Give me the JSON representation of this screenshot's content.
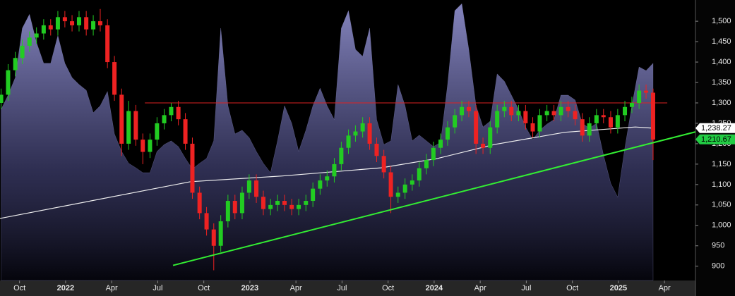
{
  "chart_data": {
    "type": "candlestick",
    "up_color": "#22cc22",
    "down_color": "#ee2222",
    "xlim": [
      2021.644,
      2025.418
    ],
    "ylim": [
      865,
      1552
    ],
    "xticks": [
      {
        "value": 2021.75,
        "label": "Oct"
      },
      2022,
      {
        "value": 2022.25,
        "label": "Apr"
      },
      {
        "value": 2022.5,
        "label": "Jul"
      },
      {
        "value": 2022.75,
        "label": "Oct"
      },
      2023,
      {
        "value": 2023.25,
        "label": "Apr"
      },
      {
        "value": 2023.5,
        "label": "Jul"
      },
      {
        "value": 2023.75,
        "label": "Oct"
      },
      2024,
      {
        "value": 2024.25,
        "label": "Apr"
      },
      {
        "value": 2024.5,
        "label": "Jul"
      },
      {
        "value": 2024.75,
        "label": "Oct"
      },
      2025,
      {
        "value": 2025.25,
        "label": "Apr"
      }
    ],
    "yticks": [
      900,
      950,
      {
        "value": 1000,
        "label": "1,000"
      },
      {
        "value": 1050,
        "label": "1,050"
      },
      {
        "value": 1100,
        "label": "1,100"
      },
      {
        "value": 1150,
        "label": "1,150"
      },
      {
        "value": 1200,
        "label": "1,200"
      },
      {
        "value": 1250,
        "label": "1,250"
      },
      {
        "value": 1300,
        "label": "1,300"
      },
      {
        "value": 1350,
        "label": "1,350"
      },
      {
        "value": 1400,
        "label": "1,400"
      },
      {
        "value": 1450,
        "label": "1,450"
      },
      {
        "value": 1500,
        "label": "1,500"
      }
    ],
    "x": [
      2021.65,
      2021.688,
      2021.727,
      2021.765,
      2021.804,
      2021.842,
      2021.881,
      2021.919,
      2021.958,
      2021.996,
      2022.035,
      2022.073,
      2022.112,
      2022.15,
      2022.188,
      2022.227,
      2022.265,
      2022.304,
      2022.342,
      2022.381,
      2022.419,
      2022.458,
      2022.496,
      2022.535,
      2022.573,
      2022.612,
      2022.65,
      2022.688,
      2022.727,
      2022.765,
      2022.804,
      2022.842,
      2022.881,
      2022.919,
      2022.958,
      2022.996,
      2023.035,
      2023.073,
      2023.112,
      2023.15,
      2023.188,
      2023.227,
      2023.265,
      2023.304,
      2023.342,
      2023.381,
      2023.419,
      2023.458,
      2023.496,
      2023.535,
      2023.573,
      2023.612,
      2023.65,
      2023.688,
      2023.727,
      2023.765,
      2023.804,
      2023.842,
      2023.881,
      2023.919,
      2023.958,
      2023.996,
      2024.035,
      2024.073,
      2024.112,
      2024.15,
      2024.188,
      2024.227,
      2024.265,
      2024.304,
      2024.342,
      2024.381,
      2024.419,
      2024.458,
      2024.496,
      2024.535,
      2024.573,
      2024.612,
      2024.65,
      2024.688,
      2024.727,
      2024.765,
      2024.804,
      2024.842,
      2024.881,
      2024.919,
      2024.958,
      2024.996,
      2025.035,
      2025.073,
      2025.112,
      2025.15,
      2025.188
    ],
    "open": [
      1300,
      1320,
      1380,
      1410,
      1440,
      1460,
      1470,
      1490,
      1480,
      1510,
      1500,
      1490,
      1510,
      1480,
      1500,
      1490,
      1400,
      1320,
      1200,
      1280,
      1210,
      1180,
      1210,
      1250,
      1270,
      1290,
      1260,
      1200,
      1080,
      1030,
      990,
      950,
      1010,
      1060,
      1030,
      1080,
      1110,
      1070,
      1040,
      1050,
      1060,
      1050,
      1040,
      1050,
      1060,
      1090,
      1110,
      1120,
      1150,
      1190,
      1220,
      1230,
      1250,
      1200,
      1170,
      1130,
      1070,
      1080,
      1100,
      1110,
      1140,
      1160,
      1190,
      1210,
      1240,
      1270,
      1290,
      1280,
      1200,
      1190,
      1240,
      1280,
      1290,
      1270,
      1280,
      1250,
      1230,
      1270,
      1280,
      1270,
      1290,
      1280,
      1260,
      1220,
      1250,
      1270,
      1265,
      1240,
      1270,
      1290,
      1300,
      1330,
      1325
    ],
    "high": [
      1335,
      1395,
      1425,
      1455,
      1475,
      1485,
      1505,
      1505,
      1525,
      1525,
      1515,
      1525,
      1525,
      1515,
      1530,
      1505,
      1415,
      1335,
      1305,
      1295,
      1225,
      1225,
      1265,
      1285,
      1300,
      1305,
      1275,
      1215,
      1095,
      1045,
      1005,
      1025,
      1075,
      1075,
      1095,
      1125,
      1125,
      1085,
      1065,
      1075,
      1075,
      1065,
      1065,
      1075,
      1105,
      1125,
      1135,
      1165,
      1205,
      1235,
      1245,
      1265,
      1265,
      1215,
      1185,
      1145,
      1095,
      1115,
      1125,
      1155,
      1175,
      1205,
      1225,
      1255,
      1285,
      1305,
      1305,
      1295,
      1215,
      1255,
      1295,
      1305,
      1305,
      1295,
      1295,
      1265,
      1285,
      1295,
      1295,
      1305,
      1305,
      1295,
      1275,
      1265,
      1285,
      1285,
      1280,
      1285,
      1305,
      1315,
      1345,
      1345,
      1335
    ],
    "low": [
      1285,
      1305,
      1365,
      1395,
      1425,
      1445,
      1455,
      1465,
      1465,
      1485,
      1475,
      1475,
      1465,
      1465,
      1475,
      1385,
      1305,
      1170,
      1185,
      1195,
      1150,
      1165,
      1195,
      1235,
      1255,
      1245,
      1185,
      1065,
      1015,
      975,
      890,
      935,
      995,
      1015,
      1015,
      1065,
      1055,
      1025,
      1025,
      1035,
      1035,
      1025,
      1025,
      1035,
      1045,
      1075,
      1095,
      1105,
      1135,
      1175,
      1205,
      1215,
      1185,
      1155,
      1115,
      1030,
      1055,
      1065,
      1085,
      1095,
      1125,
      1145,
      1175,
      1195,
      1225,
      1255,
      1265,
      1175,
      1175,
      1175,
      1225,
      1265,
      1255,
      1255,
      1235,
      1215,
      1215,
      1255,
      1255,
      1255,
      1265,
      1245,
      1205,
      1205,
      1235,
      1250,
      1225,
      1225,
      1255,
      1275,
      1285,
      1310,
      1160
    ],
    "close": [
      1320,
      1380,
      1410,
      1440,
      1460,
      1470,
      1490,
      1480,
      1510,
      1500,
      1490,
      1510,
      1480,
      1500,
      1490,
      1400,
      1320,
      1200,
      1280,
      1210,
      1180,
      1210,
      1250,
      1270,
      1290,
      1260,
      1200,
      1080,
      1030,
      990,
      950,
      1010,
      1060,
      1030,
      1080,
      1110,
      1070,
      1040,
      1050,
      1060,
      1050,
      1040,
      1050,
      1060,
      1090,
      1110,
      1120,
      1150,
      1190,
      1220,
      1230,
      1250,
      1200,
      1170,
      1130,
      1070,
      1080,
      1100,
      1110,
      1140,
      1160,
      1190,
      1210,
      1240,
      1270,
      1290,
      1280,
      1200,
      1190,
      1240,
      1280,
      1290,
      1270,
      1280,
      1250,
      1230,
      1270,
      1280,
      1270,
      1290,
      1280,
      1260,
      1220,
      1250,
      1270,
      1265,
      1240,
      1270,
      1290,
      1300,
      1330,
      1325,
      1210
    ],
    "area": {
      "color": "#8c8cc8",
      "values": [
        1284,
        1319,
        1362,
        1483,
        1517,
        1448,
        1397,
        1397,
        1465,
        1397,
        1362,
        1345,
        1331,
        1276,
        1293,
        1328,
        1224,
        1181,
        1152,
        1141,
        1129,
        1129,
        1181,
        1198,
        1207,
        1193,
        1164,
        1138,
        1152,
        1164,
        1207,
        1483,
        1293,
        1224,
        1233,
        1215,
        1181,
        1152,
        1129,
        1207,
        1293,
        1250,
        1181,
        1233,
        1293,
        1336,
        1293,
        1259,
        1483,
        1526,
        1431,
        1414,
        1483,
        1259,
        1198,
        1207,
        1345,
        1293,
        1207,
        1221,
        1207,
        1193,
        1203,
        1345,
        1526,
        1543,
        1431,
        1293,
        1241,
        1255,
        1371,
        1353,
        1319,
        1284,
        1241,
        1210,
        1233,
        1248,
        1259,
        1319,
        1319,
        1307,
        1250,
        1238,
        1250,
        1172,
        1103,
        1069,
        1190,
        1293,
        1388,
        1379,
        1397
      ]
    },
    "moving_average": {
      "color": "#f0f0f0",
      "x": [
        2021.644,
        2022.678,
        2023.176,
        2023.713,
        2024.019,
        2024.326,
        2024.709,
        2025.092,
        2025.188
      ],
      "values": [
        1017,
        1107,
        1121,
        1141,
        1164,
        1198,
        1228,
        1241,
        1238
      ]
    },
    "hline": {
      "color": "#dd2222",
      "value": 1300,
      "x": [
        2022.43,
        2025.265
      ]
    },
    "trendline": {
      "color": "#33ee33",
      "x": [
        2022.583,
        2025.418
      ],
      "values": [
        902,
        1229
      ]
    },
    "price_tags": [
      {
        "value": 1238.27,
        "label": "1,238.27",
        "color": "#ffffff"
      },
      {
        "value": 1210.67,
        "label": "1,210.67",
        "color": "#22cc44"
      }
    ]
  }
}
